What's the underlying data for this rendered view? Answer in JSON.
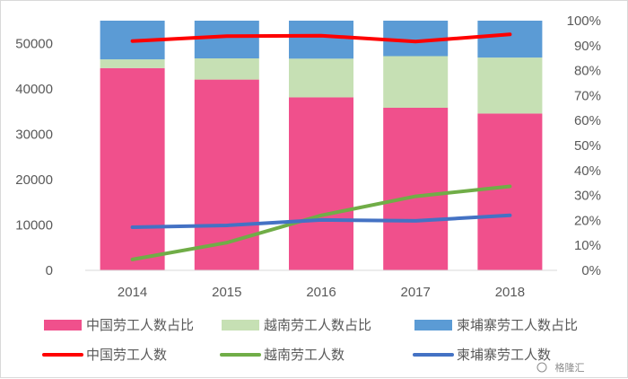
{
  "chart_data": {
    "type": "bar",
    "categories": [
      "2014",
      "2015",
      "2016",
      "2017",
      "2018"
    ],
    "y_left": {
      "ylim": [
        0,
        55000
      ],
      "ticks": [
        "0",
        "10000",
        "20000",
        "30000",
        "40000",
        "50000"
      ]
    },
    "y_right": {
      "ylim": [
        0,
        1.0
      ],
      "ticks": [
        "0%",
        "10%",
        "20%",
        "30%",
        "40%",
        "50%",
        "60%",
        "70%",
        "80%",
        "90%",
        "100%"
      ]
    },
    "stacked_series": [
      {
        "name": "中国劳工人数占比",
        "color": "#f0508c",
        "values": [
          0.81,
          0.764,
          0.693,
          0.651,
          0.628
        ]
      },
      {
        "name": "越南劳工人数占比",
        "color": "#c6e0b4",
        "values": [
          0.035,
          0.085,
          0.155,
          0.207,
          0.224
        ]
      },
      {
        "name": "柬埔寨劳工人数占比",
        "color": "#5b9bd5",
        "values": [
          0.155,
          0.151,
          0.152,
          0.142,
          0.148
        ]
      }
    ],
    "line_series": [
      {
        "name": "中国劳工人数",
        "color": "#ff0000",
        "values": [
          50500,
          51600,
          51700,
          50400,
          52000
        ]
      },
      {
        "name": "越南劳工人数",
        "color": "#70ad47",
        "values": [
          2400,
          6100,
          12100,
          16300,
          18500
        ]
      },
      {
        "name": "柬埔寨劳工人数",
        "color": "#4472c4",
        "values": [
          9500,
          9900,
          11100,
          10900,
          12100
        ]
      }
    ],
    "grid": false,
    "legend_position": "bottom"
  },
  "watermark": "格隆汇"
}
